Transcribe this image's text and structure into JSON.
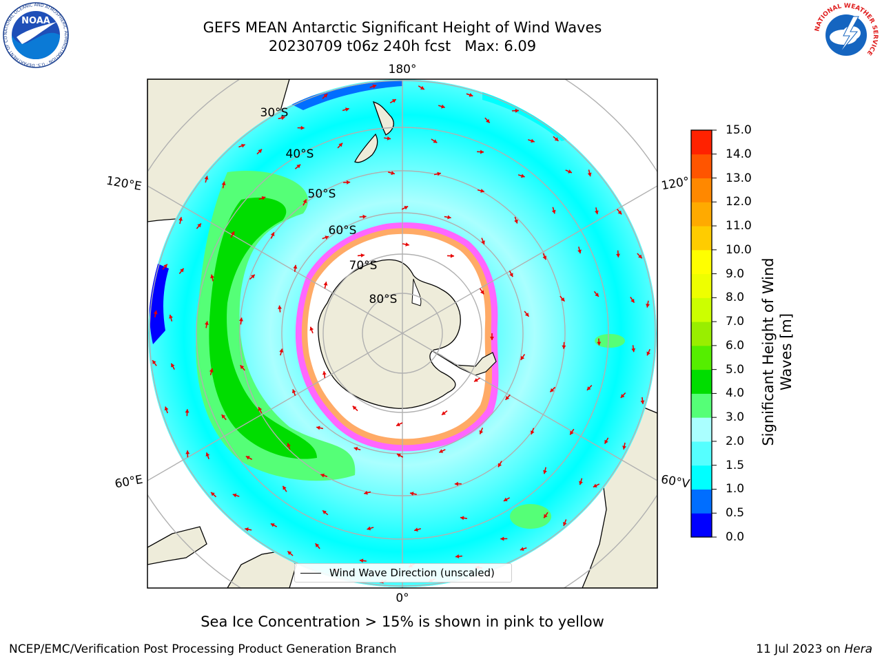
{
  "header": {
    "title_line1": "GEFS MEAN Antarctic Significant Height of Wind Waves",
    "run": "20230709 t06z 240h fcst",
    "max": "Max: 6.09"
  },
  "logos": {
    "left": {
      "name": "NOAA",
      "ring_text": "NATIONAL OCEANIC AND ATMOSPHERIC ADMINISTRATION · U.S. DEPARTMENT OF COMMERCE ·"
    },
    "right": {
      "name": "NATIONAL WEATHER SERVICE",
      "ring_text": "NATIONAL WEATHER SERVICE"
    }
  },
  "map": {
    "meridian_labels": {
      "top": "180°",
      "bottom": "0°",
      "upper_left": "120°E",
      "upper_right": "120°",
      "lower_left": "60°E",
      "lower_right": "60°V"
    },
    "latitude_labels": [
      "30°S",
      "40°S",
      "50°S",
      "60°S",
      "70°S",
      "80°S"
    ],
    "legend": "Wind Wave Direction (unscaled)",
    "colors": {
      "ocean_low": "#0000ff",
      "wave_1": "#006eff",
      "wave_15": "#00ffff",
      "wave_2": "#55ffff",
      "wave_3": "#aaffff",
      "wave_4": "#55ff77",
      "wave_5": "#00dd00",
      "land": "#eeecda",
      "arrows": "#e60000",
      "sea_ice": "#ff66ff",
      "grid": "#b0b0b0"
    }
  },
  "colorbar": {
    "title_line1": "Significant Height of Wind",
    "title_line2": "Waves [m]",
    "ticks": [
      "0.0",
      "0.5",
      "1.0",
      "1.5",
      "2.0",
      "3.0",
      "4.0",
      "5.0",
      "6.0",
      "7.0",
      "8.0",
      "9.0",
      "10.0",
      "11.0",
      "12.0",
      "13.0",
      "14.0",
      "15.0"
    ],
    "colors": [
      "#0000ff",
      "#006eff",
      "#00ffff",
      "#55ffff",
      "#aaffff",
      "#55ff77",
      "#00dd00",
      "#55ee00",
      "#99ee00",
      "#ccff00",
      "#eeff00",
      "#ffff00",
      "#ffcc00",
      "#ffaa00",
      "#ff8800",
      "#ff5500",
      "#ff2200",
      "#ff0000"
    ]
  },
  "caption": "Sea Ice Concentration > 15% is shown in pink to yellow",
  "footer": {
    "left": "NCEP/EMC/Verification Post Processing Product Generation Branch",
    "right_prefix": "11 Jul 2023 on ",
    "right_host": "Hera"
  }
}
